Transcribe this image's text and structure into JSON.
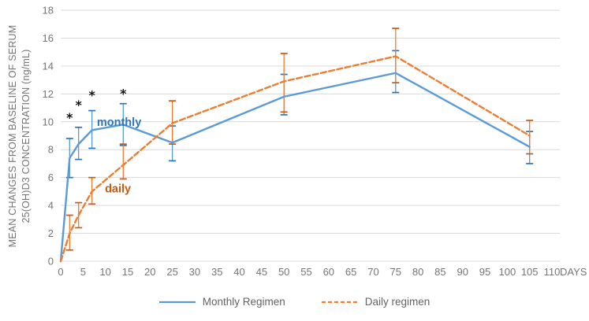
{
  "y_axis": {
    "title_line1": "MEAN CHANGES FROM BASELINE OF SERUM",
    "title_line2": "25(OH)D3 CONCENTRATION (ng/mL)"
  },
  "x_axis": {
    "unit_label": "DAYS"
  },
  "legend": [
    {
      "label": "Monthly Regimen"
    },
    {
      "label": "Daily regimen"
    }
  ],
  "colors": {
    "grid": "#d9d9d9",
    "tick_text": "#757575",
    "legend_text": "#636363",
    "monthly_blue": "#5b9bd5",
    "daily_orange": "#ed7d31",
    "monthly_label_blue": "#2e75b6",
    "daily_label_orange": "#c55a11",
    "asterisk": "#141414"
  },
  "chart_data": {
    "type": "line",
    "title": "",
    "xlabel": "DAYS",
    "ylabel": "MEAN CHANGES FROM BASELINE OF SERUM 25(OH)D3 CONCENTRATION (ng/mL)",
    "x": [
      0,
      2,
      4,
      7,
      14,
      25,
      50,
      75,
      105
    ],
    "series": [
      {
        "name": "Monthly Regimen",
        "inline_label": "monthly",
        "color": "#5b9bd5",
        "cap_color": "#2e75b6",
        "dash": false,
        "values": [
          0,
          7.4,
          8.4,
          9.4,
          9.8,
          8.5,
          11.8,
          13.5,
          8.2
        ],
        "err_low": [
          null,
          6.0,
          7.3,
          8.1,
          8.3,
          7.2,
          10.5,
          12.1,
          7.0
        ],
        "err_high": [
          null,
          8.8,
          9.6,
          10.8,
          11.3,
          9.7,
          13.4,
          15.1,
          9.3
        ]
      },
      {
        "name": "Daily regimen",
        "inline_label": "daily",
        "color": "#ed7d31",
        "cap_color": "#c55a11",
        "dash": true,
        "values": [
          0,
          2.0,
          3.3,
          5.0,
          6.9,
          9.9,
          12.9,
          14.7,
          9.0
        ],
        "err_low": [
          null,
          0.8,
          2.4,
          4.1,
          5.9,
          8.4,
          10.7,
          12.8,
          7.7
        ],
        "err_high": [
          null,
          3.3,
          4.2,
          6.0,
          8.4,
          11.5,
          14.9,
          16.7,
          10.1
        ]
      }
    ],
    "xlim": [
      0,
      110
    ],
    "ylim": [
      0,
      18
    ],
    "x_tick_step": 5,
    "y_tick_step": 2,
    "grid": "horizontal",
    "legend_position": "bottom",
    "annotations": {
      "asterisks": [
        {
          "x": 2,
          "y": 10.0
        },
        {
          "x": 4,
          "y": 10.9
        },
        {
          "x": 7,
          "y": 11.6
        },
        {
          "x": 14,
          "y": 11.7
        }
      ],
      "series_labels": [
        {
          "text": "monthly",
          "x": 8.1,
          "y": 9.7,
          "color": "#2e75b6"
        },
        {
          "text": "daily",
          "x": 9.9,
          "y": 4.95,
          "color": "#c55a11"
        }
      ]
    }
  }
}
